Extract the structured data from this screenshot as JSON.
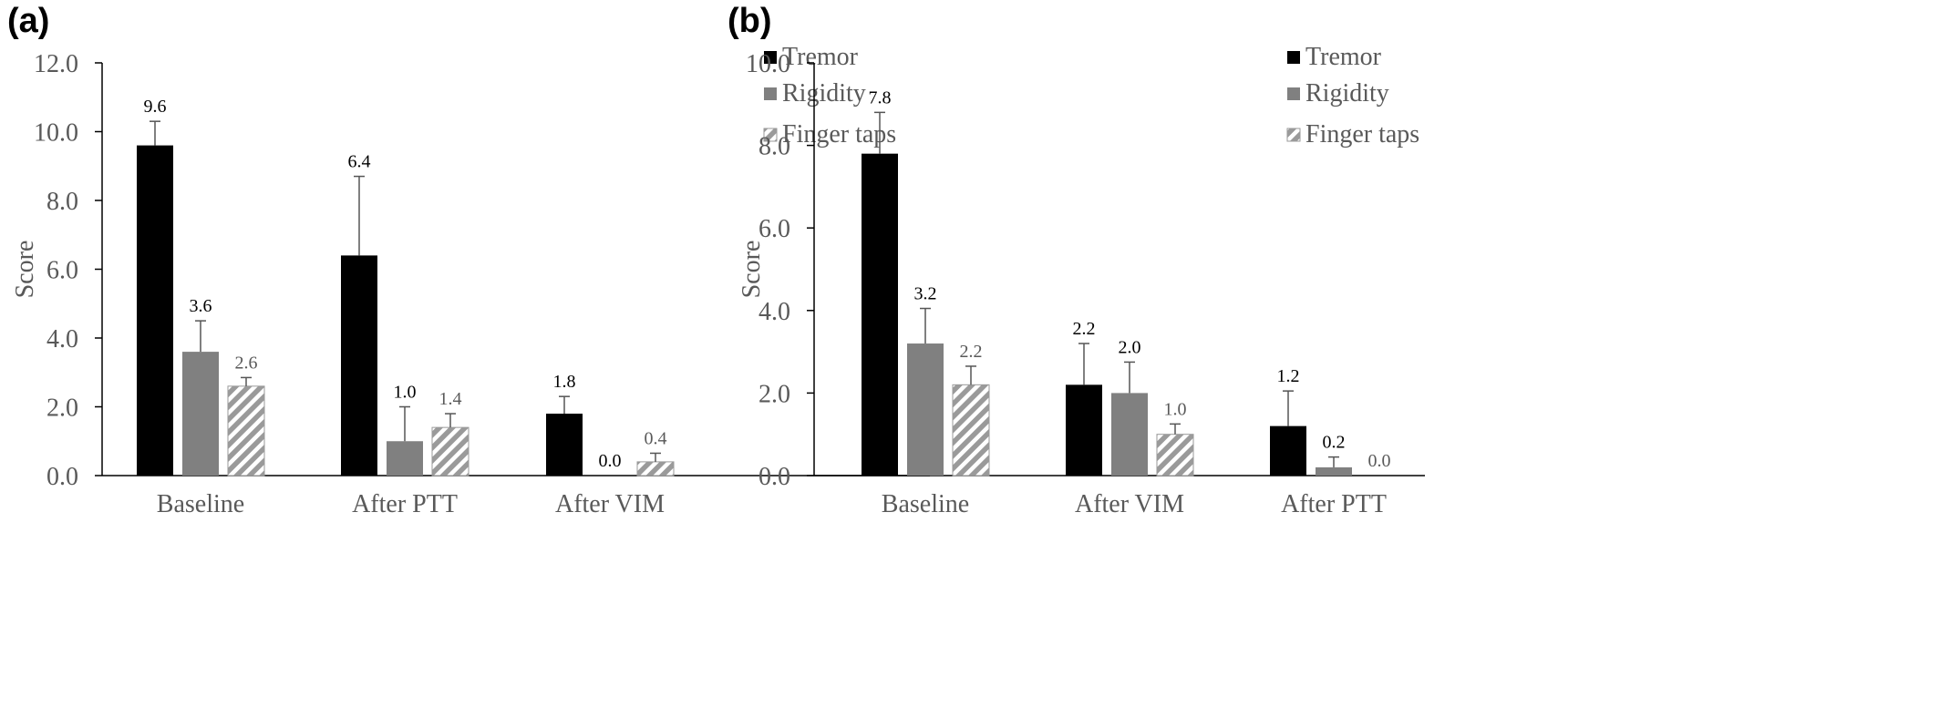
{
  "chart_data": [
    {
      "panel_label": "(a)",
      "type": "bar",
      "ylabel": "Score",
      "xlabel": "",
      "ylim": [
        0,
        12
      ],
      "yticks": [
        "0.0",
        "2.0",
        "4.0",
        "6.0",
        "8.0",
        "10.0",
        "12.0"
      ],
      "categories": [
        "Baseline",
        "After PTT",
        "After VIM"
      ],
      "legend_position": "top-right",
      "grid": false,
      "series": [
        {
          "name": "Tremor",
          "pattern": "solid-black",
          "values": [
            9.6,
            6.4,
            1.8
          ],
          "errors": [
            0.7,
            2.3,
            0.5
          ],
          "labels": [
            "9.6",
            "6.4",
            "1.8"
          ]
        },
        {
          "name": "Rigidity",
          "pattern": "solid-gray",
          "values": [
            3.6,
            1.0,
            0.0
          ],
          "errors": [
            0.9,
            1.0,
            0
          ],
          "labels": [
            "3.6",
            "1.0",
            "0.0"
          ]
        },
        {
          "name": "Finger taps",
          "pattern": "diagonal-hatch",
          "values": [
            2.6,
            1.4,
            0.4
          ],
          "errors": [
            0.25,
            0.4,
            0.25
          ],
          "labels": [
            "2.6",
            "1.4",
            "0.4"
          ]
        }
      ]
    },
    {
      "panel_label": "(b)",
      "type": "bar",
      "ylabel": "Score",
      "xlabel": "",
      "ylim": [
        0,
        10
      ],
      "yticks": [
        "0.0",
        "2.0",
        "4.0",
        "6.0",
        "8.0",
        "10.0"
      ],
      "categories": [
        "Baseline",
        "After VIM",
        "After PTT"
      ],
      "legend_position": "top-right",
      "grid": false,
      "series": [
        {
          "name": "Tremor",
          "pattern": "solid-black",
          "values": [
            7.8,
            2.2,
            1.2
          ],
          "errors": [
            1.0,
            1.0,
            0.85
          ],
          "labels": [
            "7.8",
            "2.2",
            "1.2"
          ]
        },
        {
          "name": "Rigidity",
          "pattern": "solid-gray",
          "values": [
            3.2,
            2.0,
            0.2
          ],
          "errors": [
            0.85,
            0.75,
            0.25
          ],
          "labels": [
            "3.2",
            "2.0",
            "0.2"
          ]
        },
        {
          "name": "Finger taps",
          "pattern": "diagonal-hatch",
          "values": [
            2.2,
            1.0,
            0.0
          ],
          "errors": [
            0.45,
            0.25,
            0
          ],
          "labels": [
            "2.2",
            "1.0",
            "0.0"
          ]
        }
      ]
    }
  ],
  "colors": {
    "tremor": "#000000",
    "rigidity": "#808080",
    "finger_taps_stripe": "#9a9a9a",
    "axis_text": "#595959",
    "axis_line": "#000000"
  }
}
